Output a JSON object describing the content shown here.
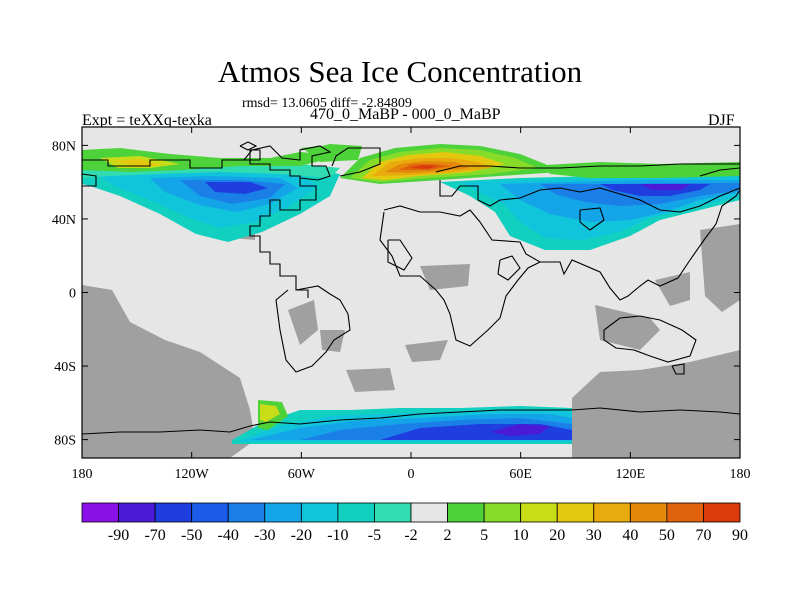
{
  "chart_data": {
    "type": "heatmap",
    "projection": "cylindrical-equidistant",
    "title": "Atmos Sea Ice Concentration",
    "stats": "rmsd= 13.0605 diff= -2.84809",
    "subtitle": "470_0_MaBP - 000_0_MaBP",
    "expt_label": "Expt = teXXq-texka",
    "season": "DJF",
    "xlim": [
      -180,
      180
    ],
    "ylim": [
      -90,
      90
    ],
    "x_ticks": [
      {
        "value": -180,
        "label": "180"
      },
      {
        "value": -120,
        "label": "120W"
      },
      {
        "value": -60,
        "label": "60W"
      },
      {
        "value": 0,
        "label": "0"
      },
      {
        "value": 60,
        "label": "60E"
      },
      {
        "value": 120,
        "label": "120E"
      },
      {
        "value": 180,
        "label": "180"
      }
    ],
    "y_ticks": [
      {
        "value": 80,
        "label": "80N"
      },
      {
        "value": 40,
        "label": "40N"
      },
      {
        "value": 0,
        "label": "0"
      },
      {
        "value": -40,
        "label": "40S"
      },
      {
        "value": -80,
        "label": "80S"
      }
    ],
    "colorbar": {
      "levels": [
        "-90",
        "-70",
        "-50",
        "-40",
        "-30",
        "-20",
        "-10",
        "-5",
        "-2",
        "2",
        "5",
        "10",
        "20",
        "30",
        "40",
        "50",
        "70",
        "90"
      ],
      "colors": [
        "#8a10e8",
        "#4a1ad8",
        "#1e3ee0",
        "#1a5ce8",
        "#1a80e8",
        "#14a4e8",
        "#10c4dc",
        "#12d0c0",
        "#30dcb0",
        "#e6e6e6",
        "#4ed23a",
        "#86dc28",
        "#c8dc18",
        "#e4c810",
        "#e8aa0c",
        "#e4880c",
        "#e0620c",
        "#dc3a0c"
      ]
    },
    "fields": {
      "background_value_range": "-2 to 2",
      "missing_land": "grey",
      "regions": [
        {
          "name": "north-pacific-decrease",
          "lon": [
            -180,
            -40
          ],
          "lat": [
            28,
            68
          ],
          "value_range": [
            -50,
            -5
          ]
        },
        {
          "name": "arctic-pacific-increase",
          "lon": [
            -180,
            -50
          ],
          "lat": [
            68,
            82
          ],
          "value_range": [
            5,
            40
          ]
        },
        {
          "name": "north-atlantic-increase",
          "lon": [
            -25,
            55
          ],
          "lat": [
            62,
            82
          ],
          "value_range": [
            10,
            90
          ]
        },
        {
          "name": "eurasia-arctic-decrease",
          "lon": [
            40,
            180
          ],
          "lat": [
            30,
            68
          ],
          "value_range": [
            -70,
            -5
          ]
        },
        {
          "name": "antarctic-decrease",
          "lon": [
            -80,
            90
          ],
          "lat": [
            -84,
            -64
          ],
          "value_range": [
            -70,
            -5
          ]
        },
        {
          "name": "antarctic-peninsula-increase",
          "lon": [
            -85,
            -70
          ],
          "lat": [
            -78,
            -64
          ],
          "value_range": [
            5,
            20
          ]
        }
      ]
    }
  }
}
